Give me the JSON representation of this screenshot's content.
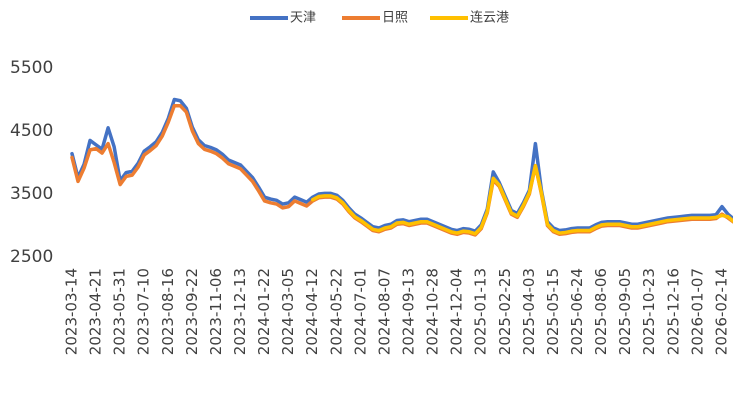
{
  "chart_data": {
    "type": "line",
    "categories": [
      "2023-03-14",
      null,
      null,
      null,
      "2023-04-21",
      null,
      null,
      null,
      "2023-05-31",
      null,
      null,
      null,
      "2023-07-10",
      null,
      null,
      null,
      "2023-08-16",
      null,
      null,
      null,
      "2023-09-22",
      null,
      null,
      null,
      "2023-11-06",
      null,
      null,
      null,
      "2023-12-13",
      null,
      null,
      null,
      "2024-01-22",
      null,
      null,
      null,
      "2024-03-05",
      null,
      null,
      null,
      "2024-04-12",
      null,
      null,
      null,
      "2024-05-22",
      null,
      null,
      null,
      "2024-07-01",
      null,
      null,
      null,
      "2024-08-07",
      null,
      null,
      null,
      "2024-09-13",
      null,
      null,
      null,
      "2024-10-28",
      null,
      null,
      null,
      "2024-12-04",
      null,
      null,
      null,
      "2025-01-13",
      null,
      null,
      null,
      "2025-02-25",
      null,
      null,
      null,
      "2025-04-03",
      null,
      null,
      null,
      "2025-05-15",
      null,
      null,
      null,
      "2025-06-24",
      null,
      null,
      null,
      "2025-08-06",
      null,
      null,
      null,
      "2025-09-05",
      null,
      null,
      null,
      "2025-10-23",
      null,
      null,
      null,
      "2025-12-16",
      null,
      null,
      null,
      "2026-01-07",
      null,
      null,
      null,
      "2026-02-14",
      null,
      null
    ],
    "series": [
      {
        "name": "天津",
        "color": "#4472c4",
        "values": [
          4140,
          3760,
          3970,
          4350,
          4280,
          4210,
          4550,
          4250,
          3710,
          3840,
          3860,
          3990,
          4180,
          4250,
          4330,
          4480,
          4700,
          5000,
          4980,
          4860,
          4560,
          4360,
          4270,
          4240,
          4200,
          4130,
          4040,
          4000,
          3960,
          3860,
          3760,
          3610,
          3450,
          3420,
          3400,
          3340,
          3360,
          3450,
          3410,
          3370,
          3450,
          3500,
          3510,
          3510,
          3480,
          3400,
          3280,
          3180,
          3120,
          3050,
          2980,
          2960,
          3000,
          3020,
          3080,
          3090,
          3060,
          3080,
          3100,
          3100,
          3060,
          3020,
          2980,
          2940,
          2920,
          2950,
          2940,
          2910,
          3010,
          3260,
          3850,
          3680,
          3460,
          3240,
          3190,
          3360,
          3560,
          4300,
          3560,
          3060,
          2960,
          2920,
          2930,
          2950,
          2960,
          2960,
          2960,
          3010,
          3050,
          3060,
          3060,
          3060,
          3040,
          3020,
          3020,
          3040,
          3060,
          3080,
          3100,
          3120,
          3130,
          3140,
          3150,
          3160,
          3160,
          3160,
          3160,
          3170,
          3300,
          3180,
          3100
        ]
      },
      {
        "name": "日照",
        "color": "#ed7d31",
        "values": [
          4080,
          3700,
          3910,
          4200,
          4220,
          4150,
          4300,
          4000,
          3650,
          3780,
          3800,
          3930,
          4120,
          4190,
          4270,
          4420,
          4640,
          4900,
          4900,
          4800,
          4500,
          4300,
          4210,
          4180,
          4140,
          4070,
          3980,
          3940,
          3900,
          3800,
          3700,
          3550,
          3390,
          3360,
          3340,
          3280,
          3300,
          3390,
          3350,
          3310,
          3390,
          3440,
          3450,
          3450,
          3420,
          3340,
          3220,
          3120,
          3060,
          2990,
          2920,
          2900,
          2940,
          2960,
          3020,
          3030,
          3000,
          3020,
          3040,
          3040,
          3000,
          2960,
          2920,
          2880,
          2860,
          2890,
          2880,
          2850,
          2950,
          3200,
          3720,
          3620,
          3400,
          3180,
          3130,
          3300,
          3500,
          3950,
          3500,
          3000,
          2900,
          2860,
          2870,
          2890,
          2900,
          2900,
          2900,
          2950,
          2990,
          3000,
          3000,
          3000,
          2980,
          2960,
          2960,
          2980,
          3000,
          3020,
          3040,
          3060,
          3070,
          3080,
          3090,
          3100,
          3100,
          3100,
          3100,
          3110,
          3180,
          3120,
          3050
        ]
      },
      {
        "name": "连云港",
        "color": "#ffc000",
        "values": [
          null,
          null,
          null,
          null,
          null,
          null,
          null,
          null,
          null,
          null,
          null,
          null,
          null,
          null,
          null,
          null,
          null,
          null,
          null,
          null,
          null,
          null,
          null,
          null,
          null,
          null,
          null,
          null,
          null,
          null,
          null,
          null,
          null,
          null,
          null,
          null,
          null,
          null,
          null,
          null,
          3410,
          3460,
          3470,
          3470,
          3440,
          3360,
          3240,
          3140,
          3080,
          3010,
          2940,
          2920,
          2960,
          2980,
          3040,
          3050,
          3020,
          3040,
          3060,
          3060,
          3020,
          2980,
          2940,
          2900,
          2880,
          2910,
          2900,
          2870,
          2970,
          3220,
          3750,
          3640,
          3420,
          3200,
          3150,
          3320,
          3520,
          3950,
          3520,
          3020,
          2920,
          2880,
          2890,
          2910,
          2920,
          2920,
          2920,
          2970,
          3010,
          3020,
          3020,
          3020,
          3000,
          2980,
          2980,
          3000,
          3020,
          3040,
          3060,
          3080,
          3090,
          3100,
          3110,
          3120,
          3120,
          3120,
          3120,
          3130,
          3160,
          3140,
          3060
        ]
      }
    ],
    "ylim": [
      2500,
      5500
    ],
    "yticks": [
      2500,
      3500,
      4500,
      5500
    ],
    "grid": false,
    "legend": "top"
  }
}
